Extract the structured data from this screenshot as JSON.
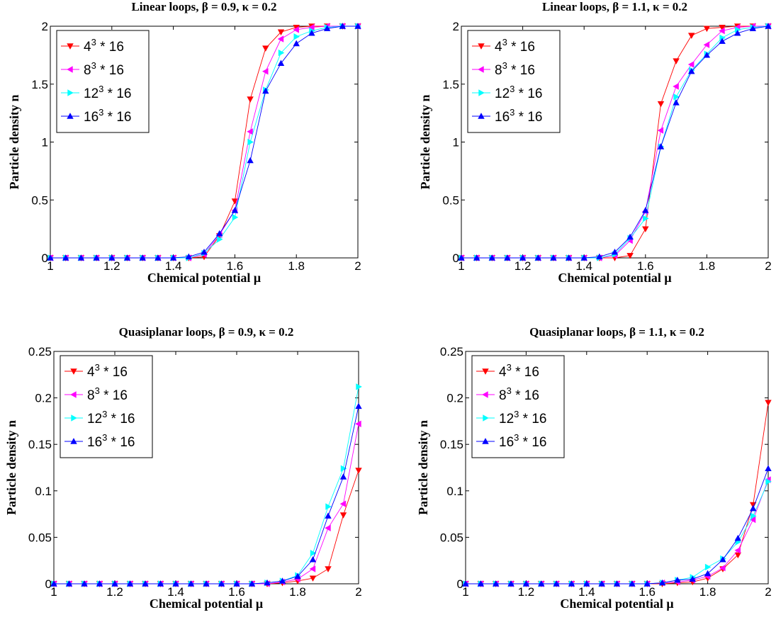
{
  "colors": {
    "4^3 * 16": "#ff0000",
    "8^3 * 16": "#ff00ff",
    "12^3 * 16": "#00ffff",
    "16^3 * 16": "#0000ff"
  },
  "chart_data": [
    {
      "type": "line",
      "title": "Linear loops,  β = 0.9,  κ = 0.2",
      "xlabel": "Chemical potential μ",
      "ylabel": "Particle density n",
      "xlim": [
        1,
        2
      ],
      "ylim": [
        0,
        2
      ],
      "xticks": [
        "1",
        "1.2",
        "1.4",
        "1.6",
        "1.8",
        "2"
      ],
      "yticks": [
        "0",
        "0.5",
        "1",
        "1.5",
        "2"
      ],
      "legend_position": "top-left",
      "x": [
        1.0,
        1.05,
        1.1,
        1.15,
        1.2,
        1.25,
        1.3,
        1.35,
        1.4,
        1.45,
        1.5,
        1.55,
        1.6,
        1.65,
        1.7,
        1.75,
        1.8,
        1.85,
        1.9,
        1.95,
        2.0
      ],
      "series": [
        {
          "base": "4",
          "rest": " * 16",
          "marker": "v",
          "color": "#ff0000",
          "values": [
            0,
            0,
            0,
            0,
            0,
            0,
            0,
            0,
            0,
            0,
            0.01,
            0.19,
            0.49,
            1.37,
            1.81,
            1.95,
            1.99,
            2.0,
            2.0,
            2.0,
            2.0
          ]
        },
        {
          "base": "8",
          "rest": " * 16",
          "marker": "<",
          "color": "#ff00ff",
          "values": [
            0,
            0,
            0,
            0,
            0,
            0,
            0,
            0,
            0,
            0,
            0.03,
            0.2,
            0.41,
            1.09,
            1.61,
            1.89,
            1.97,
            1.99,
            2.0,
            2.0,
            2.0
          ]
        },
        {
          "base": "12",
          "rest": " * 16",
          "marker": ">",
          "color": "#00ffff",
          "values": [
            0,
            0,
            0,
            0,
            0,
            0,
            0,
            0,
            0,
            0,
            0.04,
            0.16,
            0.35,
            1.0,
            1.45,
            1.77,
            1.91,
            1.96,
            1.99,
            2.0,
            2.0
          ]
        },
        {
          "base": "16",
          "rest": " * 16",
          "marker": "^",
          "color": "#0000ff",
          "values": [
            0,
            0,
            0,
            0,
            0,
            0,
            0,
            0,
            0,
            0.01,
            0.05,
            0.21,
            0.41,
            0.84,
            1.44,
            1.68,
            1.85,
            1.94,
            1.98,
            2.0,
            2.0
          ]
        }
      ]
    },
    {
      "type": "line",
      "title": "Linear loops,  β = 1.1,  κ = 0.2",
      "xlabel": "Chemical potential μ",
      "ylabel": "Particle density n",
      "xlim": [
        1,
        2
      ],
      "ylim": [
        0,
        2
      ],
      "xticks": [
        "1",
        "1.2",
        "1.4",
        "1.6",
        "1.8",
        "2"
      ],
      "yticks": [
        "0",
        "0.5",
        "1",
        "1.5",
        "2"
      ],
      "legend_position": "top-left",
      "x": [
        1.0,
        1.05,
        1.1,
        1.15,
        1.2,
        1.25,
        1.3,
        1.35,
        1.4,
        1.45,
        1.5,
        1.55,
        1.6,
        1.65,
        1.7,
        1.75,
        1.8,
        1.85,
        1.9,
        1.95,
        2.0
      ],
      "series": [
        {
          "base": "4",
          "rest": " * 16",
          "marker": "v",
          "color": "#ff0000",
          "values": [
            0,
            0,
            0,
            0,
            0,
            0,
            0,
            0,
            0,
            0,
            0,
            0.02,
            0.25,
            1.33,
            1.7,
            1.92,
            1.98,
            1.99,
            2.0,
            2.0,
            2.0
          ]
        },
        {
          "base": "8",
          "rest": " * 16",
          "marker": "<",
          "color": "#ff00ff",
          "values": [
            0,
            0,
            0,
            0,
            0,
            0,
            0,
            0,
            0,
            0,
            0.02,
            0.15,
            0.4,
            1.1,
            1.48,
            1.67,
            1.84,
            1.96,
            1.99,
            2.0,
            2.0
          ]
        },
        {
          "base": "12",
          "rest": " * 16",
          "marker": ">",
          "color": "#00ffff",
          "values": [
            0,
            0,
            0,
            0,
            0,
            0,
            0,
            0,
            0,
            0,
            0.03,
            0.17,
            0.34,
            0.96,
            1.39,
            1.62,
            1.76,
            1.9,
            1.97,
            1.99,
            2.0
          ]
        },
        {
          "base": "16",
          "rest": " * 16",
          "marker": "^",
          "color": "#0000ff",
          "values": [
            0,
            0,
            0,
            0,
            0,
            0,
            0,
            0,
            0,
            0.01,
            0.05,
            0.18,
            0.41,
            0.96,
            1.34,
            1.61,
            1.75,
            1.87,
            1.94,
            1.98,
            2.0
          ]
        }
      ]
    },
    {
      "type": "line",
      "title": "Quasiplanar loops,  β = 0.9,  κ = 0.2",
      "xlabel": "Chemical potential μ",
      "ylabel": "Particle density n",
      "xlim": [
        1,
        2
      ],
      "ylim": [
        0,
        0.25
      ],
      "xticks": [
        "1",
        "1.2",
        "1.4",
        "1.6",
        "1.8",
        "2"
      ],
      "yticks": [
        "0",
        "0.05",
        "0.1",
        "0.15",
        "0.2",
        "0.25"
      ],
      "legend_position": "top-left",
      "x": [
        1.0,
        1.05,
        1.1,
        1.15,
        1.2,
        1.25,
        1.3,
        1.35,
        1.4,
        1.45,
        1.5,
        1.55,
        1.6,
        1.65,
        1.7,
        1.75,
        1.8,
        1.85,
        1.9,
        1.95,
        2.0
      ],
      "series": [
        {
          "base": "4",
          "rest": " * 16",
          "marker": "v",
          "color": "#ff0000",
          "values": [
            0,
            0,
            0,
            0,
            0,
            0,
            0,
            0,
            0,
            0,
            0,
            0,
            0,
            0,
            0,
            0.001,
            0.003,
            0.006,
            0.016,
            0.074,
            0.122
          ]
        },
        {
          "base": "8",
          "rest": " * 16",
          "marker": "<",
          "color": "#ff00ff",
          "values": [
            0,
            0,
            0,
            0,
            0,
            0,
            0,
            0,
            0,
            0,
            0,
            0,
            0,
            0,
            0,
            0.002,
            0.005,
            0.016,
            0.06,
            0.086,
            0.172
          ]
        },
        {
          "base": "12",
          "rest": " * 16",
          "marker": ">",
          "color": "#00ffff",
          "values": [
            0,
            0,
            0,
            0,
            0,
            0,
            0,
            0,
            0,
            0,
            0,
            0,
            0,
            0,
            0.001,
            0.003,
            0.009,
            0.033,
            0.083,
            0.124,
            0.212
          ]
        },
        {
          "base": "16",
          "rest": " * 16",
          "marker": "^",
          "color": "#0000ff",
          "values": [
            0,
            0,
            0,
            0,
            0,
            0,
            0,
            0,
            0,
            0,
            0,
            0,
            0,
            0,
            0.001,
            0.003,
            0.008,
            0.026,
            0.073,
            0.115,
            0.191
          ]
        }
      ]
    },
    {
      "type": "line",
      "title": "Quasiplanar loops,  β = 1.1,  κ = 0.2",
      "xlabel": "Chemical potential μ",
      "ylabel": "Particle density n",
      "xlim": [
        1,
        2
      ],
      "ylim": [
        0,
        0.25
      ],
      "xticks": [
        "1",
        "1.2",
        "1.4",
        "1.6",
        "1.8",
        "2"
      ],
      "yticks": [
        "0",
        "0.05",
        "0.1",
        "0.15",
        "0.2",
        "0.25"
      ],
      "legend_position": "top-left",
      "x": [
        1.0,
        1.05,
        1.1,
        1.15,
        1.2,
        1.25,
        1.3,
        1.35,
        1.4,
        1.45,
        1.5,
        1.55,
        1.6,
        1.65,
        1.7,
        1.75,
        1.8,
        1.85,
        1.9,
        1.95,
        2.0
      ],
      "series": [
        {
          "base": "4",
          "rest": " * 16",
          "marker": "v",
          "color": "#ff0000",
          "values": [
            0,
            0,
            0,
            0,
            0,
            0,
            0,
            0,
            0,
            0,
            0,
            0,
            0,
            0,
            0.001,
            0.002,
            0.006,
            0.016,
            0.031,
            0.085,
            0.195
          ]
        },
        {
          "base": "8",
          "rest": " * 16",
          "marker": "<",
          "color": "#ff00ff",
          "values": [
            0,
            0,
            0,
            0,
            0,
            0,
            0,
            0,
            0,
            0,
            0,
            0,
            0,
            0.001,
            0.002,
            0.004,
            0.008,
            0.017,
            0.036,
            0.069,
            0.112
          ]
        },
        {
          "base": "12",
          "rest": " * 16",
          "marker": ">",
          "color": "#00ffff",
          "values": [
            0,
            0,
            0,
            0,
            0,
            0,
            0,
            0,
            0,
            0,
            0,
            0,
            0,
            0.001,
            0.004,
            0.007,
            0.018,
            0.027,
            0.045,
            0.073,
            0.11
          ]
        },
        {
          "base": "16",
          "rest": " * 16",
          "marker": "^",
          "color": "#0000ff",
          "values": [
            0,
            0,
            0,
            0,
            0,
            0,
            0,
            0,
            0,
            0,
            0,
            0,
            0,
            0.001,
            0.004,
            0.005,
            0.011,
            0.026,
            0.049,
            0.081,
            0.124
          ]
        }
      ]
    }
  ]
}
